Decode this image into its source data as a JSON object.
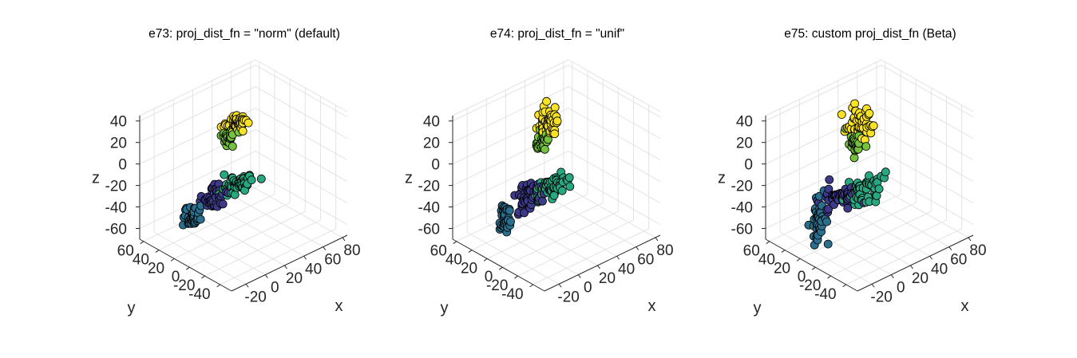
{
  "figure": {
    "colors": {
      "cluster1": "#3e3a8a",
      "cluster2": "#2b6f8e",
      "cluster3": "#27a880",
      "cluster4": "#74c23e",
      "cluster5": "#f7e225"
    }
  },
  "chart_data": [
    {
      "type": "scatter",
      "subtype": "3d",
      "title": "e73: proj_dist_fn = \"norm\" (default)",
      "xlabel": "x",
      "ylabel": "y",
      "zlabel": "z",
      "xticks": [
        "-20",
        "0",
        "20",
        "40",
        "60",
        "80"
      ],
      "yticks": [
        "-40",
        "-20",
        "0",
        "20",
        "40",
        "60"
      ],
      "zticks": [
        "-60",
        "-40",
        "-20",
        "0",
        "20",
        "40"
      ],
      "xlim": [
        -35,
        85
      ],
      "ylim": [
        -55,
        65
      ],
      "zlim": [
        -70,
        45
      ],
      "grid": true,
      "series": [
        {
          "color_key": "cluster2",
          "center": [
            -22,
            12,
            -34
          ],
          "spread": [
            3,
            3,
            6
          ],
          "count": 40,
          "seed": 11
        },
        {
          "color_key": "cluster1",
          "center": [
            5,
            17,
            -29
          ],
          "spread": [
            5,
            4,
            4
          ],
          "count": 45,
          "seed": 12
        },
        {
          "color_key": "cluster3",
          "center": [
            28,
            17,
            -28
          ],
          "spread": [
            7,
            5,
            3
          ],
          "count": 60,
          "seed": 13
        },
        {
          "color_key": "cluster4",
          "center": [
            37,
            40,
            3
          ],
          "spread": [
            3,
            3,
            3
          ],
          "count": 25,
          "seed": 14
        },
        {
          "color_key": "cluster5",
          "center": [
            48,
            43,
            11
          ],
          "spread": [
            6,
            4,
            3
          ],
          "count": 55,
          "seed": 15
        }
      ]
    },
    {
      "type": "scatter",
      "subtype": "3d",
      "title": "e74: proj_dist_fn = \"unif\"",
      "xlabel": "x",
      "ylabel": "y",
      "zlabel": "z",
      "xticks": [
        "-20",
        "0",
        "20",
        "40",
        "60",
        "80"
      ],
      "yticks": [
        "-40",
        "-20",
        "0",
        "20",
        "40",
        "60"
      ],
      "zticks": [
        "-60",
        "-40",
        "-20",
        "0",
        "20",
        "40"
      ],
      "xlim": [
        -35,
        85
      ],
      "ylim": [
        -55,
        65
      ],
      "zlim": [
        -70,
        45
      ],
      "grid": true,
      "series": [
        {
          "color_key": "cluster2",
          "center": [
            -22,
            12,
            -35
          ],
          "spread": [
            3,
            3,
            7
          ],
          "count": 35,
          "seed": 21
        },
        {
          "color_key": "cluster1",
          "center": [
            5,
            17,
            -27
          ],
          "spread": [
            6,
            5,
            5
          ],
          "count": 55,
          "seed": 22
        },
        {
          "color_key": "cluster3",
          "center": [
            28,
            17,
            -30
          ],
          "spread": [
            8,
            5,
            4
          ],
          "count": 60,
          "seed": 23
        },
        {
          "color_key": "cluster4",
          "center": [
            37,
            40,
            0
          ],
          "spread": [
            3,
            3,
            5
          ],
          "count": 25,
          "seed": 24
        },
        {
          "color_key": "cluster5",
          "center": [
            46,
            43,
            13
          ],
          "spread": [
            4,
            3,
            7
          ],
          "count": 50,
          "seed": 25
        }
      ]
    },
    {
      "type": "scatter",
      "subtype": "3d",
      "title": "e75: custom proj_dist_fn (Beta)",
      "xlabel": "x",
      "ylabel": "y",
      "zlabel": "z",
      "xticks": [
        "-20",
        "0",
        "20",
        "40",
        "60",
        "80"
      ],
      "yticks": [
        "-40",
        "-20",
        "0",
        "20",
        "40",
        "60"
      ],
      "zticks": [
        "-60",
        "-40",
        "-20",
        "0",
        "20",
        "40"
      ],
      "xlim": [
        -35,
        85
      ],
      "ylim": [
        -55,
        65
      ],
      "zlim": [
        -70,
        45
      ],
      "grid": true,
      "series": [
        {
          "color_key": "cluster2",
          "center": [
            -22,
            12,
            -36
          ],
          "spread": [
            3,
            3,
            9
          ],
          "count": 40,
          "seed": 31
        },
        {
          "color_key": "cluster1",
          "center": [
            5,
            17,
            -28
          ],
          "spread": [
            8,
            5,
            4
          ],
          "count": 55,
          "seed": 32
        },
        {
          "color_key": "cluster3",
          "center": [
            28,
            17,
            -33
          ],
          "spread": [
            10,
            5,
            4
          ],
          "count": 60,
          "seed": 33
        },
        {
          "color_key": "cluster4",
          "center": [
            37,
            40,
            -2
          ],
          "spread": [
            3,
            3,
            5
          ],
          "count": 30,
          "seed": 34
        },
        {
          "color_key": "cluster5",
          "center": [
            47,
            43,
            12
          ],
          "spread": [
            5,
            4,
            9
          ],
          "count": 55,
          "seed": 35
        }
      ]
    }
  ]
}
